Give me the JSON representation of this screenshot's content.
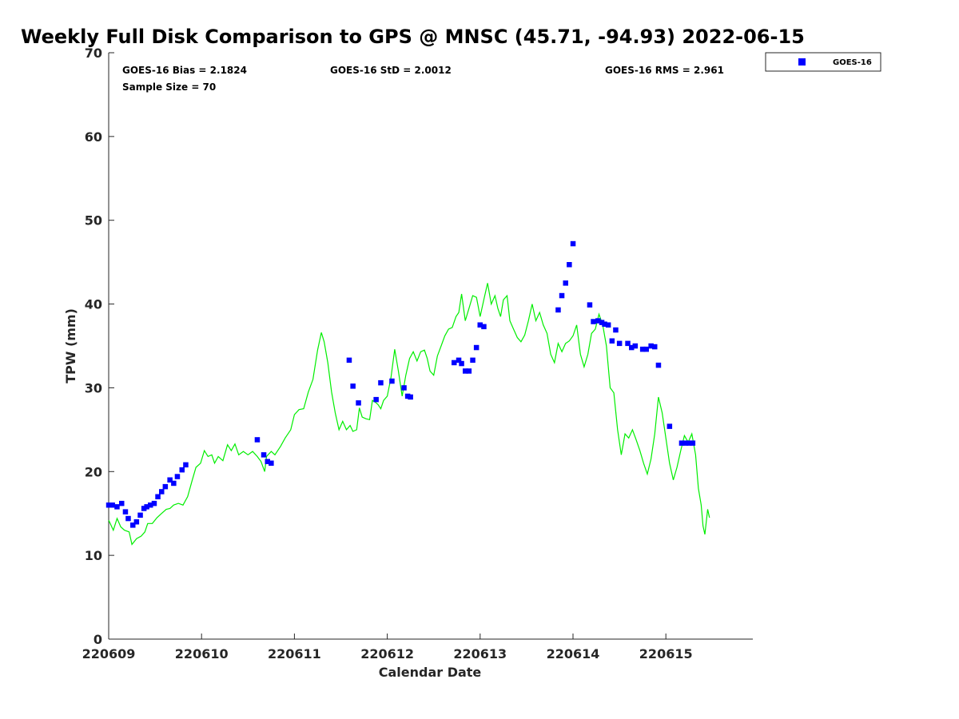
{
  "chart_data": {
    "type": "scatter",
    "title": "Weekly Full Disk Comparison to GPS @ MNSC (45.71, -94.93) 2022-06-15",
    "xlabel": "Calendar Date",
    "ylabel": "TPW (mm)",
    "xlim": [
      0,
      6.95
    ],
    "ylim": [
      0,
      70
    ],
    "yticks": [
      0,
      10,
      20,
      30,
      40,
      50,
      60,
      70
    ],
    "xticks": [
      0,
      1,
      2,
      3,
      4,
      5,
      6
    ],
    "xtick_labels": [
      "220609",
      "220610",
      "220611",
      "220612",
      "220613",
      "220614",
      "220615"
    ],
    "legend": {
      "placement": "top-right",
      "entries": [
        "GOES-16"
      ]
    },
    "stats": {
      "bias": "GOES-16 Bias = 2.1824",
      "std": "GOES-16 StD = 2.0012",
      "rms": "GOES-16 RMS = 2.961",
      "sample": "Sample Size = 70"
    },
    "colors": {
      "goes16": "#0000ff",
      "gps": "#00ee00"
    },
    "series": [
      {
        "name": "GOES-16",
        "marker": "square",
        "x": [
          0.0,
          0.04,
          0.09,
          0.14,
          0.18,
          0.21,
          0.26,
          0.3,
          0.34,
          0.38,
          0.41,
          0.45,
          0.49,
          0.53,
          0.57,
          0.61,
          0.66,
          0.7,
          0.74,
          0.79,
          0.83,
          1.6,
          1.67,
          1.71,
          1.75,
          2.59,
          2.63,
          2.69,
          2.88,
          2.93,
          3.05,
          3.18,
          3.22,
          3.25,
          3.72,
          3.77,
          3.8,
          3.84,
          3.88,
          3.92,
          3.96,
          4.0,
          4.04,
          4.84,
          4.88,
          4.92,
          4.96,
          5.0,
          5.18,
          5.22,
          5.27,
          5.31,
          5.34,
          5.38,
          5.42,
          5.46,
          5.5,
          5.59,
          5.63,
          5.67,
          5.75,
          5.79,
          5.84,
          5.88,
          5.92,
          6.04,
          6.17,
          6.21,
          6.25,
          6.29
        ],
        "y": [
          16.0,
          16.0,
          15.8,
          16.2,
          15.2,
          14.4,
          13.6,
          14.0,
          14.8,
          15.6,
          15.8,
          16.0,
          16.2,
          17.0,
          17.6,
          18.2,
          19.0,
          18.6,
          19.4,
          20.2,
          20.8,
          23.8,
          22.0,
          21.2,
          21.0,
          33.3,
          30.2,
          28.2,
          28.6,
          30.6,
          30.8,
          30.0,
          29.0,
          28.9,
          33.0,
          33.3,
          32.9,
          32.0,
          32.0,
          33.3,
          34.8,
          37.5,
          37.3,
          39.3,
          41.0,
          42.5,
          44.7,
          47.2,
          39.9,
          37.9,
          38.0,
          37.8,
          37.6,
          37.5,
          35.6,
          36.9,
          35.3,
          35.3,
          34.8,
          35.0,
          34.6,
          34.6,
          35.0,
          34.9,
          32.7,
          25.4,
          23.4,
          23.4,
          23.4,
          23.4
        ]
      },
      {
        "name": "GPS",
        "marker": "line",
        "points": [
          [
            0.0,
            14.2
          ],
          [
            0.05,
            13.0
          ],
          [
            0.09,
            14.4
          ],
          [
            0.13,
            13.4
          ],
          [
            0.17,
            13.0
          ],
          [
            0.22,
            12.8
          ],
          [
            0.25,
            11.3
          ],
          [
            0.3,
            12.0
          ],
          [
            0.35,
            12.3
          ],
          [
            0.39,
            12.8
          ],
          [
            0.42,
            13.8
          ],
          [
            0.47,
            13.8
          ],
          [
            0.52,
            14.5
          ],
          [
            0.57,
            15.0
          ],
          [
            0.62,
            15.5
          ],
          [
            0.66,
            15.6
          ],
          [
            0.7,
            16.0
          ],
          [
            0.75,
            16.2
          ],
          [
            0.8,
            16.0
          ],
          [
            0.85,
            17.0
          ],
          [
            0.9,
            19.0
          ],
          [
            0.94,
            20.5
          ],
          [
            0.99,
            21.0
          ],
          [
            1.03,
            22.5
          ],
          [
            1.07,
            21.8
          ],
          [
            1.11,
            22.0
          ],
          [
            1.14,
            21.0
          ],
          [
            1.18,
            21.8
          ],
          [
            1.23,
            21.3
          ],
          [
            1.28,
            23.2
          ],
          [
            1.32,
            22.5
          ],
          [
            1.36,
            23.3
          ],
          [
            1.4,
            22.0
          ],
          [
            1.45,
            22.4
          ],
          [
            1.5,
            22.0
          ],
          [
            1.55,
            22.4
          ],
          [
            1.6,
            21.8
          ],
          [
            1.64,
            21.2
          ],
          [
            1.68,
            20.0
          ],
          [
            1.7,
            21.8
          ],
          [
            1.75,
            22.4
          ],
          [
            1.79,
            22.0
          ],
          [
            1.85,
            23.0
          ],
          [
            1.9,
            24.0
          ],
          [
            1.96,
            25.0
          ],
          [
            2.0,
            26.8
          ],
          [
            2.05,
            27.4
          ],
          [
            2.1,
            27.5
          ],
          [
            2.15,
            29.5
          ],
          [
            2.2,
            31.0
          ],
          [
            2.25,
            34.5
          ],
          [
            2.29,
            36.6
          ],
          [
            2.32,
            35.5
          ],
          [
            2.36,
            33.0
          ],
          [
            2.4,
            29.5
          ],
          [
            2.44,
            27.0
          ],
          [
            2.48,
            25.0
          ],
          [
            2.52,
            26.0
          ],
          [
            2.56,
            25.0
          ],
          [
            2.6,
            25.5
          ],
          [
            2.63,
            24.8
          ],
          [
            2.67,
            25.0
          ],
          [
            2.7,
            27.6
          ],
          [
            2.73,
            26.5
          ],
          [
            2.77,
            26.3
          ],
          [
            2.81,
            26.2
          ],
          [
            2.84,
            28.5
          ],
          [
            2.87,
            28.3
          ],
          [
            2.9,
            28.0
          ],
          [
            2.93,
            27.5
          ],
          [
            2.96,
            28.5
          ],
          [
            3.0,
            29.0
          ],
          [
            3.04,
            31.2
          ],
          [
            3.08,
            34.6
          ],
          [
            3.12,
            32.0
          ],
          [
            3.16,
            29.0
          ],
          [
            3.2,
            31.5
          ],
          [
            3.24,
            33.5
          ],
          [
            3.28,
            34.3
          ],
          [
            3.32,
            33.2
          ],
          [
            3.36,
            34.3
          ],
          [
            3.4,
            34.5
          ],
          [
            3.43,
            33.5
          ],
          [
            3.46,
            32.0
          ],
          [
            3.5,
            31.5
          ],
          [
            3.54,
            33.8
          ],
          [
            3.58,
            35.0
          ],
          [
            3.62,
            36.2
          ],
          [
            3.66,
            37.0
          ],
          [
            3.7,
            37.2
          ],
          [
            3.74,
            38.5
          ],
          [
            3.77,
            39.0
          ],
          [
            3.8,
            41.2
          ],
          [
            3.84,
            38.0
          ],
          [
            3.88,
            39.5
          ],
          [
            3.92,
            41.0
          ],
          [
            3.96,
            40.8
          ],
          [
            4.0,
            38.5
          ],
          [
            4.04,
            40.5
          ],
          [
            4.08,
            42.5
          ],
          [
            4.12,
            40.0
          ],
          [
            4.16,
            41.0
          ],
          [
            4.19,
            39.5
          ],
          [
            4.22,
            38.5
          ],
          [
            4.25,
            40.5
          ],
          [
            4.29,
            41.0
          ],
          [
            4.32,
            38.0
          ],
          [
            4.36,
            37.0
          ],
          [
            4.4,
            36.0
          ],
          [
            4.44,
            35.5
          ],
          [
            4.48,
            36.3
          ],
          [
            4.52,
            38.0
          ],
          [
            4.56,
            40.0
          ],
          [
            4.6,
            38.0
          ],
          [
            4.64,
            39.0
          ],
          [
            4.68,
            37.5
          ],
          [
            4.72,
            36.5
          ],
          [
            4.76,
            34.0
          ],
          [
            4.8,
            33.0
          ],
          [
            4.84,
            35.3
          ],
          [
            4.88,
            34.3
          ],
          [
            4.92,
            35.3
          ],
          [
            4.96,
            35.6
          ],
          [
            5.0,
            36.2
          ],
          [
            5.04,
            37.5
          ],
          [
            5.08,
            34.0
          ],
          [
            5.12,
            32.5
          ],
          [
            5.16,
            34.0
          ],
          [
            5.2,
            36.5
          ],
          [
            5.24,
            37.0
          ],
          [
            5.28,
            38.8
          ],
          [
            5.32,
            37.5
          ],
          [
            5.36,
            35.0
          ],
          [
            5.4,
            30.0
          ],
          [
            5.44,
            29.4
          ],
          [
            5.48,
            25.0
          ],
          [
            5.52,
            22.0
          ],
          [
            5.56,
            24.5
          ],
          [
            5.6,
            24.0
          ],
          [
            5.64,
            25.0
          ],
          [
            5.68,
            23.8
          ],
          [
            5.72,
            22.5
          ],
          [
            5.76,
            21.0
          ],
          [
            5.8,
            19.7
          ],
          [
            5.84,
            21.5
          ],
          [
            5.88,
            24.5
          ],
          [
            5.92,
            28.9
          ],
          [
            5.96,
            27.0
          ],
          [
            6.0,
            24.0
          ],
          [
            6.04,
            21.0
          ],
          [
            6.08,
            19.0
          ],
          [
            6.12,
            20.5
          ],
          [
            6.16,
            22.5
          ],
          [
            6.2,
            24.3
          ],
          [
            6.24,
            23.5
          ],
          [
            6.28,
            24.5
          ],
          [
            6.32,
            22.0
          ],
          [
            6.35,
            18.0
          ],
          [
            6.38,
            16.0
          ],
          [
            6.4,
            13.5
          ],
          [
            6.42,
            12.5
          ],
          [
            6.45,
            15.5
          ],
          [
            6.47,
            14.5
          ]
        ]
      }
    ]
  }
}
